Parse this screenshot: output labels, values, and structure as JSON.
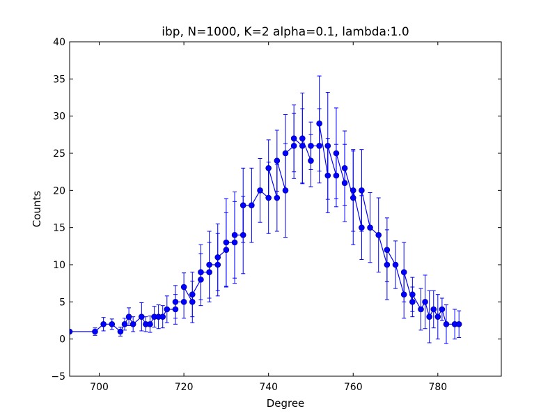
{
  "chart_data": {
    "type": "line",
    "title": "ibp, N=1000, K=2 alpha=0.1, lambda:1.0",
    "xlabel": "Degree",
    "ylabel": "Counts",
    "xlim": [
      693,
      795
    ],
    "ylim": [
      -5,
      40
    ],
    "xticks": [
      "700",
      "720",
      "740",
      "760",
      "780"
    ],
    "yticks": [
      "−5",
      "0",
      "5",
      "10",
      "15",
      "20",
      "25",
      "30",
      "35",
      "40"
    ],
    "grid": false,
    "legend": "none",
    "color": "#0000ff",
    "marker": "circle",
    "error_bars": true,
    "series": [
      {
        "x": [
          693,
          699,
          701,
          703,
          705,
          706,
          707,
          708,
          710,
          711,
          712,
          713,
          714,
          715,
          716,
          718,
          718,
          720,
          720,
          722,
          722,
          724,
          724,
          726,
          726,
          728,
          728,
          730,
          730,
          732,
          732,
          734,
          734,
          736,
          738,
          740,
          740,
          742,
          742,
          744,
          744,
          746,
          746,
          748,
          748,
          750,
          750,
          752,
          752,
          754,
          754,
          756,
          756,
          758,
          758,
          760,
          760,
          762,
          762,
          764,
          766,
          768,
          768,
          770,
          772,
          772,
          774,
          774,
          776,
          777,
          778,
          779,
          780,
          781,
          782,
          784,
          785
        ],
        "y": [
          1,
          1,
          2,
          2,
          1,
          2,
          3,
          2,
          3,
          2,
          2,
          3,
          3,
          3,
          4,
          4,
          5,
          5,
          7,
          5,
          6,
          8,
          9,
          9,
          10,
          10,
          11,
          12,
          13,
          13,
          14,
          14,
          18,
          18,
          20,
          19,
          23,
          19,
          24,
          20,
          25,
          26,
          27,
          26,
          27,
          24,
          26,
          26,
          29,
          22,
          26,
          22,
          25,
          21,
          23,
          19,
          20,
          15,
          20,
          15,
          14,
          10,
          12,
          10,
          6,
          9,
          5,
          6,
          4,
          5,
          3,
          4,
          3,
          4,
          2,
          2,
          2
        ],
        "error": [
          0,
          0.5,
          0.9,
          0.7,
          0.6,
          0.8,
          1.2,
          1.0,
          1.9,
          1.0,
          1.1,
          1.4,
          1.6,
          1.5,
          1.8,
          2.0,
          2.2,
          2.2,
          1.9,
          2.8,
          3.0,
          3.5,
          3.7,
          4.0,
          4.5,
          4.2,
          4.5,
          5.0,
          5.9,
          5.5,
          5.8,
          5.2,
          5.0,
          5.0,
          4.3,
          4.8,
          3.8,
          4.5,
          4.1,
          6.3,
          5.2,
          4.4,
          4.5,
          5.0,
          6.1,
          3.5,
          3.2,
          5.0,
          6.4,
          5.0,
          7.2,
          4.2,
          6.1,
          5.2,
          5.0,
          6.3,
          5.5,
          4.3,
          5.5,
          4.7,
          5.0,
          4.7,
          4.3,
          3.2,
          3.2,
          4.0,
          2.0,
          2.3,
          2.8,
          3.6,
          3.5,
          2.5,
          3.0,
          1.5,
          2.6,
          2.0,
          1.8
        ]
      }
    ]
  }
}
